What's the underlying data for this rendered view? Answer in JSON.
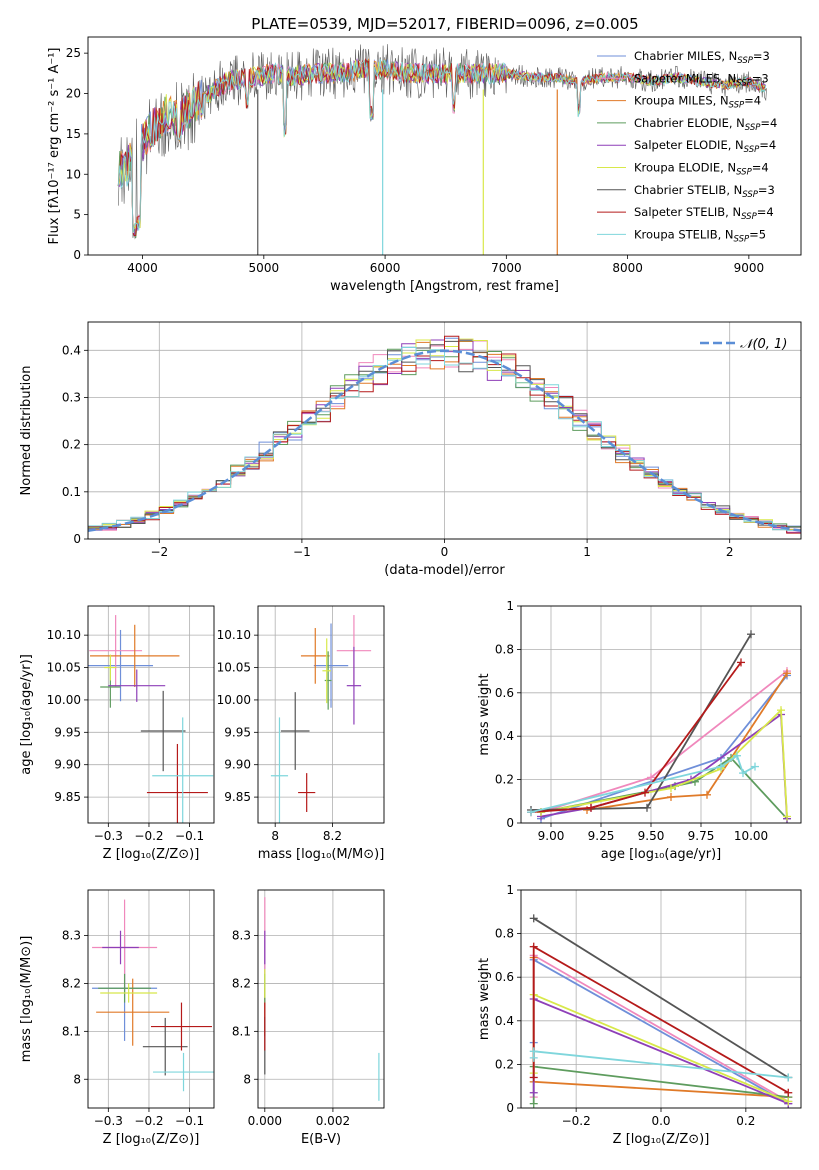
{
  "figure": {
    "title": "PLATE=0539, MJD=52017, FIBERID=0096, z=0.005"
  },
  "colors": {
    "series": [
      "#6f8fd9",
      "#f088bc",
      "#e07a28",
      "#5e9c5e",
      "#8e3fb8",
      "#d8e84a",
      "#555555",
      "#b51a1a",
      "#7fd6dc"
    ],
    "grid": "#b0b0b0",
    "normal_curve": "#5b8ed6"
  },
  "series_names": [
    "Chabrier MILES, N$_{SSP}$=3",
    "Salpeter MILES, N$_{SSP}$=3",
    "Kroupa MILES, N$_{SSP}$=4",
    "Chabrier ELODIE, N$_{SSP}$=4",
    "Salpeter ELODIE, N$_{SSP}$=4",
    "Kroupa ELODIE, N$_{SSP}$=4",
    "Chabrier STELIB, N$_{SSP}$=3",
    "Salpeter STELIB, N$_{SSP}$=4",
    "Kroupa STELIB, N$_{SSP}$=5"
  ],
  "legend_labels": [
    {
      "pre": "Chabrier MILES, N",
      "sub": "SSP",
      "post": "=3"
    },
    {
      "pre": "Salpeter MILES, N",
      "sub": "SSP",
      "post": "=3"
    },
    {
      "pre": "Kroupa MILES, N",
      "sub": "SSP",
      "post": "=4"
    },
    {
      "pre": "Chabrier ELODIE, N",
      "sub": "SSP",
      "post": "=4"
    },
    {
      "pre": "Salpeter ELODIE, N",
      "sub": "SSP",
      "post": "=4"
    },
    {
      "pre": "Kroupa ELODIE, N",
      "sub": "SSP",
      "post": "=4"
    },
    {
      "pre": "Chabrier STELIB, N",
      "sub": "SSP",
      "post": "=3"
    },
    {
      "pre": "Salpeter STELIB, N",
      "sub": "SSP",
      "post": "=4"
    },
    {
      "pre": "Kroupa STELIB, N",
      "sub": "SSP",
      "post": "=5"
    }
  ],
  "chart_data": [
    {
      "id": "spectrum",
      "type": "line",
      "xlabel": "wavelength [Angstrom, rest frame]",
      "ylabel": "Flux [fλ10⁻¹⁷ erg cm⁻² s⁻¹ A⁻¹]",
      "xlim": [
        3550,
        9430
      ],
      "ylim": [
        0,
        27
      ],
      "xticks": [
        4000,
        5000,
        6000,
        7000,
        8000,
        9000
      ],
      "yticks": [
        0,
        5,
        10,
        15,
        20,
        25
      ],
      "grid": false,
      "legend": "top-right",
      "continuum": [
        [
          3800,
          11
        ],
        [
          3850,
          10
        ],
        [
          3900,
          12
        ],
        [
          3950,
          13
        ],
        [
          4000,
          14
        ],
        [
          4100,
          16
        ],
        [
          4200,
          17.5
        ],
        [
          4300,
          17
        ],
        [
          4500,
          19.5
        ],
        [
          4700,
          21.5
        ],
        [
          4900,
          22
        ],
        [
          5100,
          22.5
        ],
        [
          5200,
          22
        ],
        [
          5400,
          22.5
        ],
        [
          5600,
          22.5
        ],
        [
          5800,
          23
        ],
        [
          6000,
          23
        ],
        [
          6200,
          22.5
        ],
        [
          6400,
          22.5
        ],
        [
          6600,
          22.5
        ],
        [
          6800,
          22.5
        ],
        [
          7000,
          22.5
        ],
        [
          7200,
          22
        ],
        [
          7400,
          22
        ],
        [
          7600,
          21.5
        ],
        [
          7800,
          22
        ],
        [
          8000,
          22
        ],
        [
          8200,
          21.5
        ],
        [
          8400,
          22
        ],
        [
          8600,
          21.5
        ],
        [
          8800,
          21
        ],
        [
          9000,
          21.5
        ],
        [
          9150,
          20.5
        ]
      ],
      "absorption_lines": [
        {
          "x": 3934,
          "y": 3
        },
        {
          "x": 3968,
          "y": 4
        },
        {
          "x": 4300,
          "y": 14
        },
        {
          "x": 4861,
          "y": 19
        },
        {
          "x": 5175,
          "y": 15.5
        },
        {
          "x": 5890,
          "y": 17.5
        },
        {
          "x": 6563,
          "y": 18.5
        },
        {
          "x": 7600,
          "y": 18
        }
      ],
      "dropouts": [
        {
          "x": 4950,
          "series": 6
        },
        {
          "x": 5980,
          "series": 8
        },
        {
          "x": 6810,
          "series": 5
        },
        {
          "x": 7420,
          "series": 2
        }
      ]
    },
    {
      "id": "residuals",
      "type": "line",
      "xlabel": "(data-model)/error",
      "ylabel": "Normed distribution",
      "xlim": [
        -2.5,
        2.5
      ],
      "ylim": [
        0,
        0.46
      ],
      "xticks": [
        -2,
        -1,
        0,
        1,
        2
      ],
      "yticks": [
        0.0,
        0.1,
        0.2,
        0.3,
        0.4
      ],
      "grid": true,
      "legend": "top-right",
      "normal_label": "𝒩(0, 1)",
      "bin_width": 0.1
    },
    {
      "id": "age_vs_Z",
      "type": "scatter",
      "xlabel": "Z [log₁₀(Z/Z⊙)]",
      "ylabel": "age  [log₁₀(age/yr)]",
      "xlim": [
        -0.35,
        -0.04
      ],
      "ylim": [
        9.81,
        10.145
      ],
      "xticks": [
        -0.3,
        -0.2,
        -0.1
      ],
      "yticks": [
        9.85,
        9.9,
        9.95,
        10.0,
        10.05,
        10.1
      ],
      "ytick_labels": [
        "9.85",
        "9.90",
        "9.95",
        "10.00",
        "10.05",
        "10.10"
      ],
      "grid": true,
      "points": [
        {
          "series": 0,
          "x": -0.27,
          "xerr": 0.08,
          "y": 10.053,
          "yerr": 0.055
        },
        {
          "series": 1,
          "x": -0.282,
          "xerr": 0.065,
          "y": 10.076,
          "yerr": 0.055
        },
        {
          "series": 2,
          "x": -0.235,
          "xerr": 0.11,
          "y": 10.068,
          "yerr": 0.048
        },
        {
          "series": 3,
          "x": -0.295,
          "xerr": 0.025,
          "y": 10.02,
          "yerr": 0.032
        },
        {
          "series": 4,
          "x": -0.23,
          "xerr": 0.07,
          "y": 10.022,
          "yerr": 0.025
        },
        {
          "series": 5,
          "x": -0.295,
          "xerr": 0.015,
          "y": 10.05,
          "yerr": 0.02
        },
        {
          "series": 6,
          "x": -0.165,
          "xerr": 0.055,
          "y": 9.952,
          "yerr": 0.062
        },
        {
          "series": 7,
          "x": -0.13,
          "xerr": 0.075,
          "y": 9.857,
          "yerr": 0.075
        },
        {
          "series": 8,
          "x": -0.117,
          "xerr": 0.075,
          "y": 9.883,
          "yerr": 0.09
        }
      ]
    },
    {
      "id": "age_vs_mass",
      "type": "scatter",
      "xlabel": "mass [log₁₀(M/M⊙)]",
      "ylabel": "",
      "xlim": [
        7.94,
        8.38
      ],
      "ylim": [
        9.81,
        10.145
      ],
      "xticks": [
        8.0,
        8.2
      ],
      "yticks": [
        9.85,
        9.9,
        9.95,
        10.0,
        10.05,
        10.1
      ],
      "ytick_labels": [
        "9.85",
        "9.90",
        "9.95",
        "10.00",
        "10.05",
        "10.10"
      ],
      "grid": true,
      "points": [
        {
          "series": 0,
          "x": 8.195,
          "xerr": 0.06,
          "y": 10.053,
          "yerr": 0.065
        },
        {
          "series": 1,
          "x": 8.275,
          "xerr": 0.06,
          "y": 10.076,
          "yerr": 0.055
        },
        {
          "series": 2,
          "x": 8.14,
          "xerr": 0.05,
          "y": 10.068,
          "yerr": 0.043
        },
        {
          "series": 3,
          "x": 8.185,
          "xerr": 0.012,
          "y": 10.03,
          "yerr": 0.045
        },
        {
          "series": 4,
          "x": 8.275,
          "xerr": 0.025,
          "y": 10.022,
          "yerr": 0.06
        },
        {
          "series": 5,
          "x": 8.18,
          "xerr": 0.015,
          "y": 10.045,
          "yerr": 0.05
        },
        {
          "series": 6,
          "x": 8.07,
          "xerr": 0.05,
          "y": 9.952,
          "yerr": 0.06
        },
        {
          "series": 7,
          "x": 8.11,
          "xerr": 0.03,
          "y": 9.857,
          "yerr": 0.03
        },
        {
          "series": 8,
          "x": 8.015,
          "xerr": 0.03,
          "y": 9.883,
          "yerr": 0.09
        }
      ]
    },
    {
      "id": "weight_vs_age",
      "type": "line",
      "xlabel": "age  [log₁₀(age/yr)]",
      "ylabel": "mass weight",
      "xlim": [
        8.85,
        10.25
      ],
      "ylim": [
        0,
        1.0
      ],
      "xticks": [
        9.0,
        9.25,
        9.5,
        9.75,
        10.0
      ],
      "xtick_labels": [
        "9.00",
        "9.25",
        "9.50",
        "9.75",
        "10.00"
      ],
      "yticks": [
        0.0,
        0.2,
        0.4,
        0.6,
        0.8,
        1.0
      ],
      "grid": true,
      "series": [
        {
          "series": 0,
          "x": [
            8.95,
            9.85,
            10.18
          ],
          "y": [
            0.02,
            0.3,
            0.68
          ]
        },
        {
          "series": 1,
          "x": [
            8.95,
            9.5,
            10.18
          ],
          "y": [
            0.05,
            0.21,
            0.7
          ]
        },
        {
          "series": 2,
          "x": [
            9.18,
            9.6,
            9.78,
            10.18
          ],
          "y": [
            0.06,
            0.12,
            0.13,
            0.69
          ]
        },
        {
          "series": 3,
          "x": [
            8.95,
            9.62,
            9.72,
            9.9,
            10.18
          ],
          "y": [
            0.05,
            0.17,
            0.19,
            0.3,
            0.02
          ]
        },
        {
          "series": 4,
          "x": [
            8.95,
            9.2,
            9.7,
            10.15,
            10.18
          ],
          "y": [
            0.03,
            0.07,
            0.2,
            0.5,
            0.02
          ]
        },
        {
          "series": 5,
          "x": [
            8.95,
            9.6,
            9.85,
            10.15,
            10.18
          ],
          "y": [
            0.05,
            0.16,
            0.25,
            0.52,
            0.03
          ]
        },
        {
          "series": 6,
          "x": [
            8.9,
            9.48,
            10.0
          ],
          "y": [
            0.06,
            0.07,
            0.87
          ]
        },
        {
          "series": 7,
          "x": [
            8.9,
            9.2,
            9.47,
            9.95
          ],
          "y": [
            0.05,
            0.07,
            0.14,
            0.74
          ]
        },
        {
          "series": 8,
          "x": [
            8.9,
            9.85,
            9.93,
            9.96,
            10.02
          ],
          "y": [
            0.05,
            0.26,
            0.31,
            0.23,
            0.26
          ]
        }
      ]
    },
    {
      "id": "mass_vs_Z",
      "type": "scatter",
      "xlabel": "Z [log₁₀(Z/Z⊙)]",
      "ylabel": "mass [log₁₀(M/M⊙)]",
      "xlim": [
        -0.35,
        -0.04
      ],
      "ylim": [
        7.94,
        8.395
      ],
      "xticks": [
        -0.3,
        -0.2,
        -0.1
      ],
      "yticks": [
        8.0,
        8.1,
        8.2,
        8.3
      ],
      "grid": true,
      "points": [
        {
          "series": 0,
          "x": -0.26,
          "xerr": 0.08,
          "y": 8.19,
          "yerr": 0.11
        },
        {
          "series": 1,
          "x": -0.26,
          "xerr": 0.08,
          "y": 8.275,
          "yerr": 0.1
        },
        {
          "series": 2,
          "x": -0.24,
          "xerr": 0.09,
          "y": 8.14,
          "yerr": 0.07
        },
        {
          "series": 3,
          "x": -0.26,
          "xerr": 0.065,
          "y": 8.19,
          "yerr": 0.03
        },
        {
          "series": 4,
          "x": -0.27,
          "xerr": 0.045,
          "y": 8.275,
          "yerr": 0.035
        },
        {
          "series": 5,
          "x": -0.25,
          "xerr": 0.07,
          "y": 8.18,
          "yerr": 0.02
        },
        {
          "series": 6,
          "x": -0.16,
          "xerr": 0.055,
          "y": 8.068,
          "yerr": 0.06
        },
        {
          "series": 7,
          "x": -0.12,
          "xerr": 0.075,
          "y": 8.11,
          "yerr": 0.05
        },
        {
          "series": 8,
          "x": -0.115,
          "xerr": 0.075,
          "y": 8.015,
          "yerr": 0.04
        }
      ]
    },
    {
      "id": "mass_vs_EBV",
      "type": "scatter",
      "xlabel": "E(B-V)",
      "ylabel": "",
      "xlim": [
        -0.0002,
        0.0035
      ],
      "ylim": [
        7.94,
        8.395
      ],
      "xticks": [
        0.0,
        0.002
      ],
      "xtick_labels": [
        "0.000",
        "0.002"
      ],
      "yticks": [
        8.0,
        8.1,
        8.2,
        8.3
      ],
      "grid": true,
      "points": [
        {
          "series": 0,
          "x": 0.0,
          "xerr": 0,
          "y": 8.19,
          "yerr": 0.1
        },
        {
          "series": 1,
          "x": 0.0,
          "xerr": 0,
          "y": 8.3,
          "yerr": 0.08
        },
        {
          "series": 2,
          "x": 0.0,
          "xerr": 0,
          "y": 8.14,
          "yerr": 0.05
        },
        {
          "series": 3,
          "x": 0.0,
          "xerr": 0,
          "y": 8.19,
          "yerr": 0.03
        },
        {
          "series": 4,
          "x": 0.0,
          "xerr": 0,
          "y": 8.275,
          "yerr": 0.035
        },
        {
          "series": 5,
          "x": 0.0,
          "xerr": 0,
          "y": 8.2,
          "yerr": 0.03
        },
        {
          "series": 6,
          "x": 0.0,
          "xerr": 0,
          "y": 8.07,
          "yerr": 0.06
        },
        {
          "series": 7,
          "x": 0.0,
          "xerr": 0,
          "y": 8.11,
          "yerr": 0.05
        },
        {
          "series": 8,
          "x": 0.00335,
          "xerr": 0,
          "y": 8.005,
          "yerr": 0.05
        }
      ]
    },
    {
      "id": "weight_vs_Z",
      "type": "line",
      "xlabel": "Z [log₁₀(Z/Z⊙)]",
      "ylabel": "mass weight",
      "xlim": [
        -0.33,
        0.33
      ],
      "ylim": [
        0,
        1.0
      ],
      "xticks": [
        -0.2,
        0.0,
        0.2
      ],
      "xtick_labels": [
        "−0.2",
        "0.0",
        "0.2"
      ],
      "yticks": [
        0.0,
        0.2,
        0.4,
        0.6,
        0.8,
        1.0
      ],
      "grid": true,
      "series": [
        {
          "series": 0,
          "x": [
            -0.3,
            -0.3,
            0.3
          ],
          "y": [
            0.3,
            0.68,
            0.02
          ]
        },
        {
          "series": 1,
          "x": [
            -0.3,
            -0.3,
            0.3
          ],
          "y": [
            0.05,
            0.7,
            0.03
          ]
        },
        {
          "series": 2,
          "x": [
            -0.3,
            -0.3,
            0.3
          ],
          "y": [
            0.69,
            0.12,
            0.05
          ]
        },
        {
          "series": 3,
          "x": [
            -0.3,
            -0.3,
            0.3
          ],
          "y": [
            0.02,
            0.19,
            0.05
          ]
        },
        {
          "series": 4,
          "x": [
            -0.3,
            -0.3,
            0.3
          ],
          "y": [
            0.07,
            0.5,
            0.02
          ]
        },
        {
          "series": 5,
          "x": [
            -0.3,
            -0.3,
            0.3
          ],
          "y": [
            0.16,
            0.52,
            0.03
          ]
        },
        {
          "series": 6,
          "x": [
            -0.3,
            0.3
          ],
          "y": [
            0.87,
            0.14
          ]
        },
        {
          "series": 7,
          "x": [
            -0.3,
            -0.3,
            0.3
          ],
          "y": [
            0.14,
            0.74,
            0.07
          ]
        },
        {
          "series": 8,
          "x": [
            -0.3,
            -0.3,
            0.3
          ],
          "y": [
            0.23,
            0.26,
            0.14
          ]
        }
      ]
    }
  ]
}
